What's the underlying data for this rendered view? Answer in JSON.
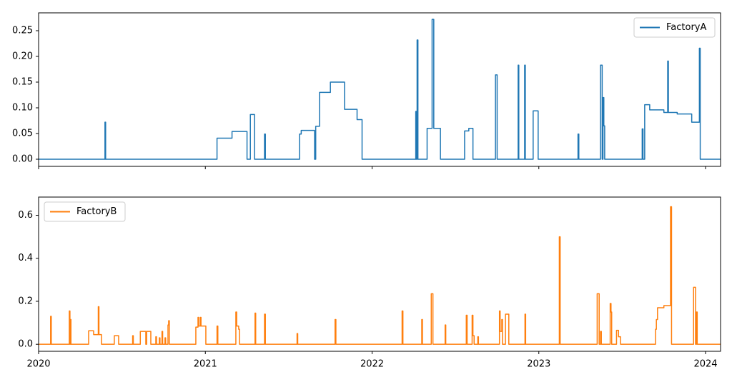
{
  "chart_data": [
    {
      "type": "line",
      "drawstyle": "steps-post",
      "legend": "upper right",
      "show_xticklabels": false,
      "xlim": [
        2020,
        2024.09
      ],
      "xticks": [
        2020,
        2021,
        2022,
        2023,
        2024
      ],
      "ylim": [
        -0.0139,
        0.2847
      ],
      "yticks": [
        {
          "value": 0,
          "label": "0.00"
        },
        0.05,
        {
          "value": 0.1,
          "label": "0.10"
        },
        0.15,
        {
          "value": 0.2,
          "label": "0.20"
        },
        0.25
      ],
      "x": [
        2020.0,
        2020.398,
        2020.402,
        2021.07,
        2021.16,
        2021.25,
        2021.27,
        2021.295,
        2021.355,
        2021.36,
        2021.565,
        2021.575,
        2021.655,
        2021.662,
        2021.685,
        2021.75,
        2021.835,
        2021.91,
        2021.94,
        2022.262,
        2022.266,
        2022.27,
        2022.275,
        2022.33,
        2022.36,
        2022.37,
        2022.41,
        2022.555,
        2022.58,
        2022.605,
        2022.74,
        2022.75,
        2022.876,
        2022.88,
        2022.915,
        2022.919,
        2022.966,
        2022.996,
        2023.235,
        2023.24,
        2023.37,
        2023.38,
        2023.385,
        2023.39,
        2023.395,
        2023.62,
        2023.625,
        2023.635,
        2023.665,
        2023.75,
        2023.773,
        2023.777,
        2023.83,
        2023.917,
        2023.963,
        2023.968,
        2024.09
      ],
      "series": [
        {
          "name": "FactoryA",
          "color": "#1f77b4",
          "values": [
            0,
            0.072,
            0,
            0.041,
            0.054,
            0,
            0.087,
            0,
            0.049,
            0,
            0.049,
            0.056,
            0,
            0.064,
            0.13,
            0.15,
            0.097,
            0.077,
            0,
            0.093,
            0,
            0.232,
            0,
            0.06,
            0.272,
            0.06,
            0,
            0.055,
            0.06,
            0,
            0.164,
            0,
            0.183,
            0,
            0.183,
            0,
            0.094,
            0,
            0.049,
            0,
            0.183,
            0,
            0.12,
            0.065,
            0,
            0.059,
            0,
            0.106,
            0.096,
            0.091,
            0.191,
            0.091,
            0.088,
            0.072,
            0.216,
            0,
            0
          ]
        }
      ]
    },
    {
      "type": "line",
      "drawstyle": "steps-post",
      "legend": "upper left",
      "show_xticklabels": true,
      "xlim": [
        2020,
        2024.09
      ],
      "xticks": [
        2020,
        2021,
        2022,
        2023,
        2024
      ],
      "ylim": [
        -0.0326,
        0.6848
      ],
      "yticks": [
        {
          "value": 0,
          "label": "0.0"
        },
        0.2,
        0.4,
        0.6
      ],
      "x": [
        2020.0,
        2020.072,
        2020.076,
        2020.184,
        2020.188,
        2020.19,
        2020.194,
        2020.3,
        2020.33,
        2020.358,
        2020.362,
        2020.377,
        2020.454,
        2020.48,
        2020.564,
        2020.568,
        2020.61,
        2020.643,
        2020.648,
        2020.673,
        2020.703,
        2020.707,
        2020.724,
        2020.728,
        2020.74,
        2020.744,
        2020.758,
        2020.762,
        2020.776,
        2020.78,
        2020.784,
        2020.943,
        2020.956,
        2020.96,
        2020.97,
        2020.974,
        2021.003,
        2021.07,
        2021.075,
        2021.183,
        2021.188,
        2021.2,
        2021.205,
        2021.298,
        2021.302,
        2021.355,
        2021.36,
        2021.55,
        2021.554,
        2021.778,
        2021.783,
        2022.18,
        2022.185,
        2022.298,
        2022.302,
        2022.355,
        2022.365,
        2022.438,
        2022.442,
        2022.565,
        2022.57,
        2022.6,
        2022.605,
        2022.612,
        2022.634,
        2022.638,
        2022.764,
        2022.768,
        2022.778,
        2022.782,
        2022.8,
        2022.82,
        2022.917,
        2022.921,
        2023.123,
        2023.128,
        2023.35,
        2023.362,
        2023.37,
        2023.375,
        2023.428,
        2023.433,
        2023.437,
        2023.466,
        2023.478,
        2023.49,
        2023.7,
        2023.705,
        2023.712,
        2023.75,
        2023.79,
        2023.796,
        2023.928,
        2023.94,
        2023.945,
        2023.95,
        2024.09
      ],
      "series": [
        {
          "name": "FactoryB",
          "color": "#ff7f0e",
          "values": [
            0,
            0.13,
            0,
            0.155,
            0,
            0.115,
            0,
            0.063,
            0.045,
            0.175,
            0.045,
            0,
            0.04,
            0,
            0.04,
            0,
            0.06,
            0,
            0.06,
            0,
            0.035,
            0,
            0.03,
            0,
            0.06,
            0,
            0.03,
            0,
            0.09,
            0.11,
            0,
            0.08,
            0.125,
            0.085,
            0.125,
            0.085,
            0,
            0.085,
            0,
            0.15,
            0.085,
            0.07,
            0,
            0.145,
            0,
            0.14,
            0,
            0.05,
            0,
            0.115,
            0,
            0.155,
            0,
            0.115,
            0,
            0.235,
            0,
            0.09,
            0,
            0.135,
            0,
            0.135,
            0.04,
            0,
            0.035,
            0,
            0.155,
            0.06,
            0.115,
            0,
            0.14,
            0,
            0.14,
            0,
            0.5,
            0,
            0.235,
            0,
            0.06,
            0,
            0.19,
            0.15,
            0,
            0.065,
            0.035,
            0,
            0.07,
            0.115,
            0.17,
            0.18,
            0.64,
            0,
            0.265,
            0,
            0.15,
            0,
            0
          ]
        }
      ]
    }
  ]
}
